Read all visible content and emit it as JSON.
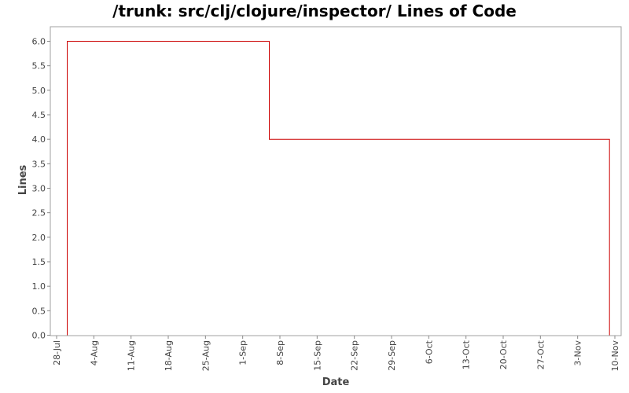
{
  "chart_data": {
    "type": "line",
    "title": "/trunk: src/clj/clojure/inspector/ Lines of Code",
    "xlabel": "Date",
    "ylabel": "Lines",
    "ylim": [
      0,
      6.3
    ],
    "y_ticks": [
      "0.0",
      "0.5",
      "1.0",
      "1.5",
      "2.0",
      "2.5",
      "3.0",
      "3.5",
      "4.0",
      "4.5",
      "5.0",
      "5.5",
      "6.0"
    ],
    "x_ticks": [
      "28-Jul",
      "4-Aug",
      "11-Aug",
      "18-Aug",
      "25-Aug",
      "1-Sep",
      "8-Sep",
      "15-Sep",
      "22-Sep",
      "29-Sep",
      "6-Oct",
      "13-Oct",
      "20-Oct",
      "27-Oct",
      "3-Nov",
      "10-Nov"
    ],
    "series": [
      {
        "color": "#cc0000",
        "step": true,
        "points": [
          {
            "x": "30-Jul",
            "y": 0
          },
          {
            "x": "30-Jul",
            "y": 6
          },
          {
            "x": "6-Sep",
            "y": 6
          },
          {
            "x": "6-Sep",
            "y": 4
          },
          {
            "x": "9-Nov",
            "y": 4
          },
          {
            "x": "9-Nov",
            "y": 0
          }
        ]
      }
    ],
    "grid": false
  }
}
